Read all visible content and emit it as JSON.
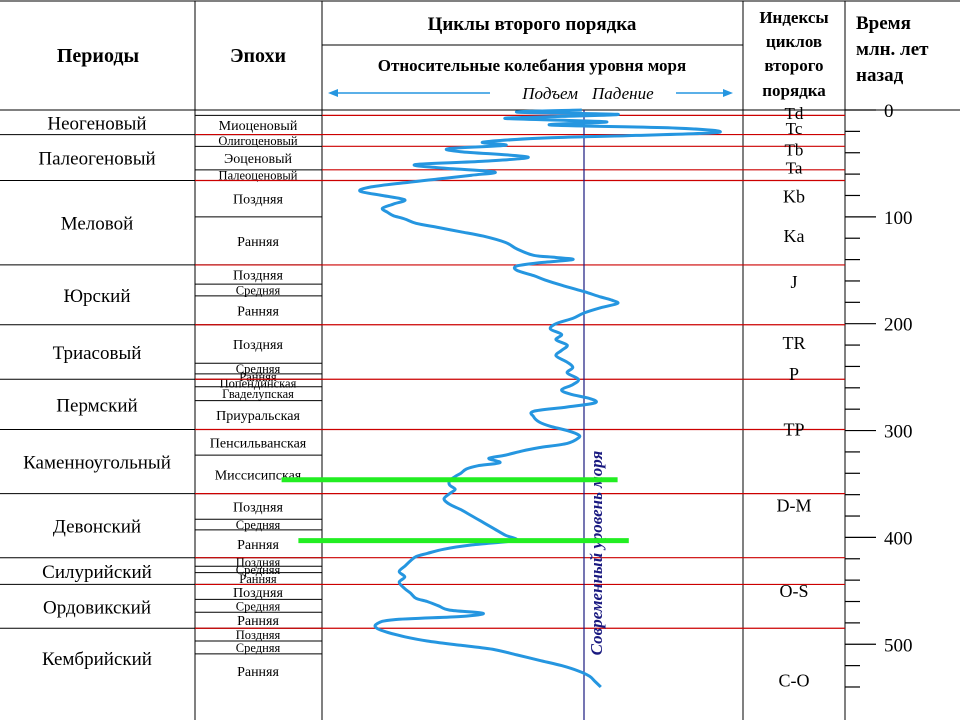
{
  "header": {
    "periods": "Периоды",
    "epochs": "Эпохи",
    "cycles_title": "Циклы второго порядка",
    "sea_level_subtitle": "Относительные колебания уровня моря",
    "rise": "Подъем",
    "fall": "Падение",
    "indices": [
      "Индексы",
      "циклов",
      "второго",
      "порядка"
    ],
    "time": [
      "Время",
      "млн. лет",
      "назад"
    ]
  },
  "modern_level_label": "Современный уровень моря",
  "colors": {
    "grid": "#000000",
    "boundary": "#cc0000",
    "curve": "#2596e0",
    "modern_line": "#1a1a80",
    "highlight": "#22ee22"
  },
  "chart_data": {
    "type": "diagram",
    "time_axis": {
      "unit": "Ma",
      "range": [
        0,
        540
      ],
      "major_ticks": [
        0,
        100,
        200,
        300,
        400,
        500
      ],
      "minor_step": 20
    },
    "periods": [
      {
        "name": "Неогеновый",
        "start": 0,
        "end": 23
      },
      {
        "name": "Палеогеновый",
        "start": 23,
        "end": 66
      },
      {
        "name": "Меловой",
        "start": 66,
        "end": 145
      },
      {
        "name": "Юрский",
        "start": 145,
        "end": 201
      },
      {
        "name": "Триасовый",
        "start": 201,
        "end": 252
      },
      {
        "name": "Пермский",
        "start": 252,
        "end": 299
      },
      {
        "name": "Каменноугольный",
        "start": 299,
        "end": 359
      },
      {
        "name": "Девонский",
        "start": 359,
        "end": 419
      },
      {
        "name": "Силурийский",
        "start": 419,
        "end": 444
      },
      {
        "name": "Ордовикский",
        "start": 444,
        "end": 485
      },
      {
        "name": "Кембрийский",
        "start": 485,
        "end": 541
      }
    ],
    "epochs": [
      {
        "name": "Миоценовый",
        "start": 5,
        "end": 23
      },
      {
        "name": "Олигоценовый",
        "start": 23,
        "end": 34
      },
      {
        "name": "Эоценовый",
        "start": 34,
        "end": 56
      },
      {
        "name": "Палеоценовый",
        "start": 56,
        "end": 66
      },
      {
        "name": "Поздняя",
        "start": 66,
        "end": 100
      },
      {
        "name": "Ранняя",
        "start": 100,
        "end": 145
      },
      {
        "name": "Поздняя",
        "start": 145,
        "end": 163
      },
      {
        "name": "Средняя",
        "start": 163,
        "end": 174
      },
      {
        "name": "Ранняя",
        "start": 174,
        "end": 201
      },
      {
        "name": "Поздняя",
        "start": 201,
        "end": 237
      },
      {
        "name": "Средняя",
        "start": 237,
        "end": 247
      },
      {
        "name": "Ранняя",
        "start": 247,
        "end": 252
      },
      {
        "name": "Попендинская",
        "start": 252,
        "end": 259
      },
      {
        "name": "Гваделупская",
        "start": 259,
        "end": 272
      },
      {
        "name": "Приуральская",
        "start": 272,
        "end": 299
      },
      {
        "name": "Пенсильванская",
        "start": 299,
        "end": 323
      },
      {
        "name": "Миссисипская",
        "start": 323,
        "end": 359
      },
      {
        "name": "Поздняя",
        "start": 359,
        "end": 383
      },
      {
        "name": "Средняя",
        "start": 383,
        "end": 393
      },
      {
        "name": "Ранняя",
        "start": 393,
        "end": 419
      },
      {
        "name": "Поздняя",
        "start": 419,
        "end": 427
      },
      {
        "name": "Средняя",
        "start": 427,
        "end": 433
      },
      {
        "name": "Ранняя",
        "start": 433,
        "end": 444
      },
      {
        "name": "Поздняя",
        "start": 444,
        "end": 458
      },
      {
        "name": "Средняя",
        "start": 458,
        "end": 470
      },
      {
        "name": "Ранняя",
        "start": 470,
        "end": 485
      },
      {
        "name": "Поздняя",
        "start": 485,
        "end": 497
      },
      {
        "name": "Средняя",
        "start": 497,
        "end": 509
      },
      {
        "name": "Ранняя",
        "start": 509,
        "end": 541
      }
    ],
    "cycle_indices": [
      {
        "name": "Td",
        "at": 3
      },
      {
        "name": "Tc",
        "at": 17
      },
      {
        "name": "Tb",
        "at": 37
      },
      {
        "name": "Ta",
        "at": 54
      },
      {
        "name": "Kb",
        "at": 80
      },
      {
        "name": "Ka",
        "at": 117
      },
      {
        "name": "J",
        "at": 160
      },
      {
        "name": "TR",
        "at": 217
      },
      {
        "name": "P",
        "at": 246
      },
      {
        "name": "TP",
        "at": 298
      },
      {
        "name": "D-M",
        "at": 369
      },
      {
        "name": "O-S",
        "at": 449
      },
      {
        "name": "C-O",
        "at": 533
      }
    ],
    "sea_level_curve": {
      "modern_level": 0,
      "note_axis": "negative = подъем, positive = падение (relative units)",
      "points": [
        [
          0,
          -2
        ],
        [
          2,
          -60
        ],
        [
          4,
          30
        ],
        [
          6,
          -20
        ],
        [
          8,
          -70
        ],
        [
          11,
          20
        ],
        [
          14,
          -30
        ],
        [
          17,
          85
        ],
        [
          21,
          120
        ],
        [
          24,
          40
        ],
        [
          26,
          -30
        ],
        [
          30,
          -90
        ],
        [
          33,
          -70
        ],
        [
          36,
          -120
        ],
        [
          39,
          -110
        ],
        [
          44,
          -50
        ],
        [
          48,
          -90
        ],
        [
          51,
          -150
        ],
        [
          54,
          -130
        ],
        [
          58,
          -80
        ],
        [
          61,
          -100
        ],
        [
          64,
          -125
        ],
        [
          68,
          -160
        ],
        [
          72,
          -190
        ],
        [
          76,
          -200
        ],
        [
          80,
          -180
        ],
        [
          84,
          -160
        ],
        [
          88,
          -170
        ],
        [
          92,
          -180
        ],
        [
          96,
          -175
        ],
        [
          99,
          -170
        ],
        [
          102,
          -160
        ],
        [
          106,
          -150
        ],
        [
          110,
          -130
        ],
        [
          114,
          -110
        ],
        [
          118,
          -90
        ],
        [
          124,
          -70
        ],
        [
          130,
          -60
        ],
        [
          136,
          -45
        ],
        [
          138,
          -25
        ],
        [
          140,
          -10
        ],
        [
          143,
          -40
        ],
        [
          146,
          -60
        ],
        [
          150,
          -60
        ],
        [
          155,
          -45
        ],
        [
          159,
          -35
        ],
        [
          164,
          -20
        ],
        [
          170,
          0
        ],
        [
          175,
          15
        ],
        [
          178,
          25
        ],
        [
          181,
          30
        ],
        [
          185,
          15
        ],
        [
          190,
          0
        ],
        [
          195,
          -10
        ],
        [
          200,
          -25
        ],
        [
          205,
          -30
        ],
        [
          210,
          -20
        ],
        [
          215,
          -25
        ],
        [
          220,
          -15
        ],
        [
          225,
          -20
        ],
        [
          230,
          -25
        ],
        [
          236,
          -15
        ],
        [
          241,
          -10
        ],
        [
          246,
          -15
        ],
        [
          252,
          -5
        ],
        [
          257,
          -10
        ],
        [
          262,
          -20
        ],
        [
          266,
          -12
        ],
        [
          270,
          5
        ],
        [
          274,
          10
        ],
        [
          278,
          -15
        ],
        [
          282,
          -45
        ],
        [
          287,
          -45
        ],
        [
          292,
          -40
        ],
        [
          296,
          -30
        ],
        [
          300,
          -15
        ],
        [
          304,
          -5
        ],
        [
          307,
          -5
        ],
        [
          312,
          -15
        ],
        [
          316,
          -40
        ],
        [
          319,
          -55
        ],
        [
          323,
          -70
        ],
        [
          326,
          -85
        ],
        [
          330,
          -75
        ],
        [
          333,
          -95
        ],
        [
          336,
          -105
        ],
        [
          340,
          -110
        ],
        [
          343,
          -115
        ],
        [
          347,
          -120
        ],
        [
          351,
          -120
        ],
        [
          355,
          -115
        ],
        [
          359,
          -120
        ],
        [
          364,
          -125
        ],
        [
          369,
          -120
        ],
        [
          374,
          -110
        ],
        [
          380,
          -100
        ],
        [
          386,
          -90
        ],
        [
          392,
          -80
        ],
        [
          398,
          -70
        ],
        [
          402,
          -60
        ],
        [
          404,
          -70
        ],
        [
          407,
          -100
        ],
        [
          411,
          -125
        ],
        [
          415,
          -140
        ],
        [
          418,
          -150
        ],
        [
          422,
          -155
        ],
        [
          427,
          -160
        ],
        [
          432,
          -165
        ],
        [
          437,
          -160
        ],
        [
          442,
          -165
        ],
        [
          448,
          -160
        ],
        [
          452,
          -155
        ],
        [
          457,
          -150
        ],
        [
          460,
          -140
        ],
        [
          464,
          -130
        ],
        [
          468,
          -120
        ],
        [
          471,
          -90
        ],
        [
          474,
          -110
        ],
        [
          477,
          -170
        ],
        [
          481,
          -185
        ],
        [
          485,
          -185
        ],
        [
          489,
          -175
        ],
        [
          493,
          -160
        ],
        [
          497,
          -140
        ],
        [
          501,
          -110
        ],
        [
          505,
          -80
        ],
        [
          510,
          -60
        ],
        [
          515,
          -40
        ],
        [
          520,
          -20
        ],
        [
          525,
          -5
        ],
        [
          530,
          5
        ],
        [
          535,
          10
        ],
        [
          540,
          15
        ]
      ]
    },
    "highlight_lines": [
      {
        "at": 346,
        "range": [
          -270,
          30
        ]
      },
      {
        "at": 403,
        "range": [
          -255,
          40
        ]
      }
    ],
    "annotation": "Современный уровень моря"
  }
}
